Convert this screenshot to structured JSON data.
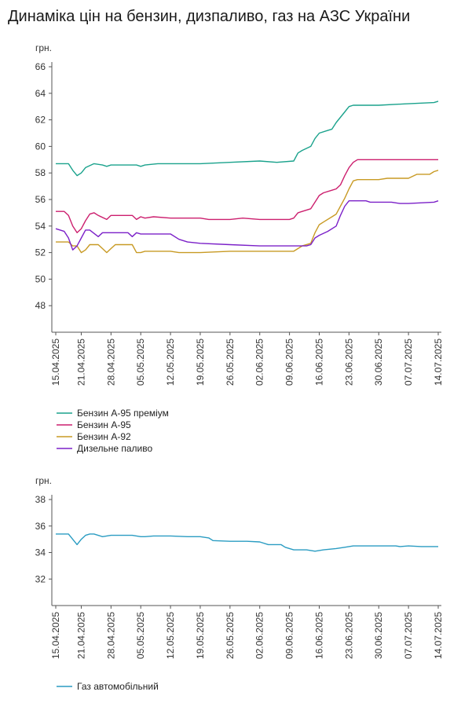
{
  "title": "Динаміка цін на бензин, дизпаливо, газ на АЗС України",
  "chart_data": [
    {
      "type": "line",
      "ylabel": "грн.",
      "ylim": [
        46,
        66
      ],
      "yticks": [
        48,
        50,
        52,
        54,
        56,
        58,
        60,
        62,
        64,
        66
      ],
      "xlim": [
        "2025-04-15",
        "2025-07-14"
      ],
      "xtick_labels": [
        "15.04.2025",
        "21.04.2025",
        "28.04.2025",
        "05.05.2025",
        "12.05.2025",
        "19.05.2025",
        "26.05.2025",
        "02.06.2025",
        "09.06.2025",
        "16.06.2025",
        "23.06.2025",
        "30.06.2025",
        "07.07.2025",
        "14.07.2025"
      ],
      "legend_position": "bottom-left",
      "series": [
        {
          "name": "Бензин А-95 преміум",
          "color": "#1aa28c",
          "points": [
            [
              "2025-04-15",
              58.7
            ],
            [
              "2025-04-18",
              58.7
            ],
            [
              "2025-04-19",
              58.2
            ],
            [
              "2025-04-20",
              57.8
            ],
            [
              "2025-04-21",
              58.0
            ],
            [
              "2025-04-22",
              58.4
            ],
            [
              "2025-04-24",
              58.7
            ],
            [
              "2025-04-26",
              58.6
            ],
            [
              "2025-04-27",
              58.5
            ],
            [
              "2025-04-28",
              58.6
            ],
            [
              "2025-05-04",
              58.6
            ],
            [
              "2025-05-05",
              58.5
            ],
            [
              "2025-05-06",
              58.6
            ],
            [
              "2025-05-09",
              58.7
            ],
            [
              "2025-05-12",
              58.7
            ],
            [
              "2025-05-19",
              58.7
            ],
            [
              "2025-05-26",
              58.8
            ],
            [
              "2025-06-02",
              58.9
            ],
            [
              "2025-06-06",
              58.8
            ],
            [
              "2025-06-10",
              58.9
            ],
            [
              "2025-06-11",
              59.5
            ],
            [
              "2025-06-12",
              59.7
            ],
            [
              "2025-06-14",
              60.0
            ],
            [
              "2025-06-15",
              60.6
            ],
            [
              "2025-06-16",
              61.0
            ],
            [
              "2025-06-18",
              61.2
            ],
            [
              "2025-06-19",
              61.3
            ],
            [
              "2025-06-20",
              61.8
            ],
            [
              "2025-06-22",
              62.6
            ],
            [
              "2025-06-23",
              63.0
            ],
            [
              "2025-06-24",
              63.1
            ],
            [
              "2025-06-30",
              63.1
            ],
            [
              "2025-07-06",
              63.2
            ],
            [
              "2025-07-13",
              63.3
            ],
            [
              "2025-07-14",
              63.4
            ]
          ]
        },
        {
          "name": "Бензин А-95",
          "color": "#cc1f6e",
          "points": [
            [
              "2025-04-15",
              55.1
            ],
            [
              "2025-04-17",
              55.1
            ],
            [
              "2025-04-18",
              54.8
            ],
            [
              "2025-04-19",
              54.0
            ],
            [
              "2025-04-20",
              53.5
            ],
            [
              "2025-04-21",
              53.8
            ],
            [
              "2025-04-22",
              54.4
            ],
            [
              "2025-04-23",
              54.9
            ],
            [
              "2025-04-24",
              55.0
            ],
            [
              "2025-04-25",
              54.8
            ],
            [
              "2025-04-27",
              54.5
            ],
            [
              "2025-04-28",
              54.8
            ],
            [
              "2025-05-03",
              54.8
            ],
            [
              "2025-05-04",
              54.5
            ],
            [
              "2025-05-05",
              54.7
            ],
            [
              "2025-05-06",
              54.6
            ],
            [
              "2025-05-08",
              54.7
            ],
            [
              "2025-05-12",
              54.6
            ],
            [
              "2025-05-19",
              54.6
            ],
            [
              "2025-05-21",
              54.5
            ],
            [
              "2025-05-26",
              54.5
            ],
            [
              "2025-05-29",
              54.6
            ],
            [
              "2025-06-02",
              54.5
            ],
            [
              "2025-06-09",
              54.5
            ],
            [
              "2025-06-10",
              54.6
            ],
            [
              "2025-06-11",
              55.0
            ],
            [
              "2025-06-12",
              55.1
            ],
            [
              "2025-06-14",
              55.3
            ],
            [
              "2025-06-15",
              55.8
            ],
            [
              "2025-06-16",
              56.3
            ],
            [
              "2025-06-17",
              56.5
            ],
            [
              "2025-06-19",
              56.7
            ],
            [
              "2025-06-20",
              56.8
            ],
            [
              "2025-06-21",
              57.1
            ],
            [
              "2025-06-22",
              57.8
            ],
            [
              "2025-06-23",
              58.4
            ],
            [
              "2025-06-24",
              58.8
            ],
            [
              "2025-06-25",
              59.0
            ],
            [
              "2025-06-30",
              59.0
            ],
            [
              "2025-07-07",
              59.0
            ],
            [
              "2025-07-14",
              59.0
            ]
          ]
        },
        {
          "name": "Бензин А-92",
          "color": "#c89a24",
          "points": [
            [
              "2025-04-15",
              52.8
            ],
            [
              "2025-04-18",
              52.8
            ],
            [
              "2025-04-19",
              52.5
            ],
            [
              "2025-04-20",
              52.5
            ],
            [
              "2025-04-21",
              52.0
            ],
            [
              "2025-04-22",
              52.2
            ],
            [
              "2025-04-23",
              52.6
            ],
            [
              "2025-04-25",
              52.6
            ],
            [
              "2025-04-26",
              52.3
            ],
            [
              "2025-04-27",
              52.0
            ],
            [
              "2025-04-28",
              52.3
            ],
            [
              "2025-04-29",
              52.6
            ],
            [
              "2025-05-03",
              52.6
            ],
            [
              "2025-05-04",
              52.0
            ],
            [
              "2025-05-05",
              52.0
            ],
            [
              "2025-05-06",
              52.1
            ],
            [
              "2025-05-12",
              52.1
            ],
            [
              "2025-05-14",
              52.0
            ],
            [
              "2025-05-19",
              52.0
            ],
            [
              "2025-05-26",
              52.1
            ],
            [
              "2025-06-02",
              52.1
            ],
            [
              "2025-06-10",
              52.1
            ],
            [
              "2025-06-11",
              52.3
            ],
            [
              "2025-06-12",
              52.5
            ],
            [
              "2025-06-14",
              52.7
            ],
            [
              "2025-06-15",
              53.5
            ],
            [
              "2025-06-16",
              54.1
            ],
            [
              "2025-06-17",
              54.3
            ],
            [
              "2025-06-19",
              54.7
            ],
            [
              "2025-06-20",
              54.9
            ],
            [
              "2025-06-21",
              55.5
            ],
            [
              "2025-06-22",
              56.1
            ],
            [
              "2025-06-23",
              56.8
            ],
            [
              "2025-06-24",
              57.4
            ],
            [
              "2025-06-25",
              57.5
            ],
            [
              "2025-06-30",
              57.5
            ],
            [
              "2025-07-02",
              57.6
            ],
            [
              "2025-07-07",
              57.6
            ],
            [
              "2025-07-09",
              57.9
            ],
            [
              "2025-07-12",
              57.9
            ],
            [
              "2025-07-13",
              58.1
            ],
            [
              "2025-07-14",
              58.2
            ]
          ]
        },
        {
          "name": "Дизельне паливо",
          "color": "#7b20c8",
          "points": [
            [
              "2025-04-15",
              53.8
            ],
            [
              "2025-04-17",
              53.6
            ],
            [
              "2025-04-18",
              53.1
            ],
            [
              "2025-04-19",
              52.2
            ],
            [
              "2025-04-20",
              52.5
            ],
            [
              "2025-04-21",
              53.1
            ],
            [
              "2025-04-22",
              53.7
            ],
            [
              "2025-04-23",
              53.7
            ],
            [
              "2025-04-25",
              53.2
            ],
            [
              "2025-04-26",
              53.5
            ],
            [
              "2025-05-02",
              53.5
            ],
            [
              "2025-05-03",
              53.2
            ],
            [
              "2025-05-04",
              53.5
            ],
            [
              "2025-05-05",
              53.4
            ],
            [
              "2025-05-12",
              53.4
            ],
            [
              "2025-05-14",
              53.0
            ],
            [
              "2025-05-16",
              52.8
            ],
            [
              "2025-05-19",
              52.7
            ],
            [
              "2025-05-26",
              52.6
            ],
            [
              "2025-06-02",
              52.5
            ],
            [
              "2025-06-09",
              52.5
            ],
            [
              "2025-06-13",
              52.5
            ],
            [
              "2025-06-14",
              52.6
            ],
            [
              "2025-06-15",
              53.1
            ],
            [
              "2025-06-16",
              53.3
            ],
            [
              "2025-06-18",
              53.6
            ],
            [
              "2025-06-20",
              54.0
            ],
            [
              "2025-06-21",
              54.8
            ],
            [
              "2025-06-22",
              55.5
            ],
            [
              "2025-06-23",
              55.9
            ],
            [
              "2025-06-27",
              55.9
            ],
            [
              "2025-06-28",
              55.8
            ],
            [
              "2025-07-03",
              55.8
            ],
            [
              "2025-07-05",
              55.7
            ],
            [
              "2025-07-07",
              55.7
            ],
            [
              "2025-07-13",
              55.8
            ],
            [
              "2025-07-14",
              55.9
            ]
          ]
        }
      ]
    },
    {
      "type": "line",
      "ylabel": "грн.",
      "ylim": [
        30,
        38
      ],
      "yticks": [
        32,
        34,
        36,
        38
      ],
      "xlim": [
        "2025-04-15",
        "2025-07-14"
      ],
      "xtick_labels": [
        "15.04.2025",
        "21.04.2025",
        "28.04.2025",
        "05.05.2025",
        "12.05.2025",
        "19.05.2025",
        "26.05.2025",
        "02.06.2025",
        "09.06.2025",
        "16.06.2025",
        "23.06.2025",
        "30.06.2025",
        "07.07.2025",
        "14.07.2025"
      ],
      "legend_position": "bottom-left",
      "series": [
        {
          "name": "Газ автомобільний",
          "color": "#2a9cc2",
          "points": [
            [
              "2025-04-15",
              35.4
            ],
            [
              "2025-04-18",
              35.4
            ],
            [
              "2025-04-20",
              34.6
            ],
            [
              "2025-04-21",
              35.0
            ],
            [
              "2025-04-22",
              35.3
            ],
            [
              "2025-04-23",
              35.4
            ],
            [
              "2025-04-24",
              35.4
            ],
            [
              "2025-04-26",
              35.2
            ],
            [
              "2025-04-28",
              35.3
            ],
            [
              "2025-05-03",
              35.3
            ],
            [
              "2025-05-05",
              35.2
            ],
            [
              "2025-05-06",
              35.2
            ],
            [
              "2025-05-08",
              35.25
            ],
            [
              "2025-05-12",
              35.25
            ],
            [
              "2025-05-16",
              35.2
            ],
            [
              "2025-05-19",
              35.2
            ],
            [
              "2025-05-21",
              35.1
            ],
            [
              "2025-05-22",
              34.9
            ],
            [
              "2025-05-26",
              34.85
            ],
            [
              "2025-05-30",
              34.85
            ],
            [
              "2025-06-02",
              34.8
            ],
            [
              "2025-06-04",
              34.6
            ],
            [
              "2025-06-07",
              34.6
            ],
            [
              "2025-06-08",
              34.4
            ],
            [
              "2025-06-10",
              34.2
            ],
            [
              "2025-06-13",
              34.2
            ],
            [
              "2025-06-15",
              34.1
            ],
            [
              "2025-06-17",
              34.2
            ],
            [
              "2025-06-20",
              34.3
            ],
            [
              "2025-06-22",
              34.4
            ],
            [
              "2025-06-24",
              34.5
            ],
            [
              "2025-06-30",
              34.5
            ],
            [
              "2025-07-04",
              34.5
            ],
            [
              "2025-07-05",
              34.45
            ],
            [
              "2025-07-07",
              34.5
            ],
            [
              "2025-07-10",
              34.45
            ],
            [
              "2025-07-14",
              34.45
            ]
          ]
        }
      ]
    }
  ]
}
